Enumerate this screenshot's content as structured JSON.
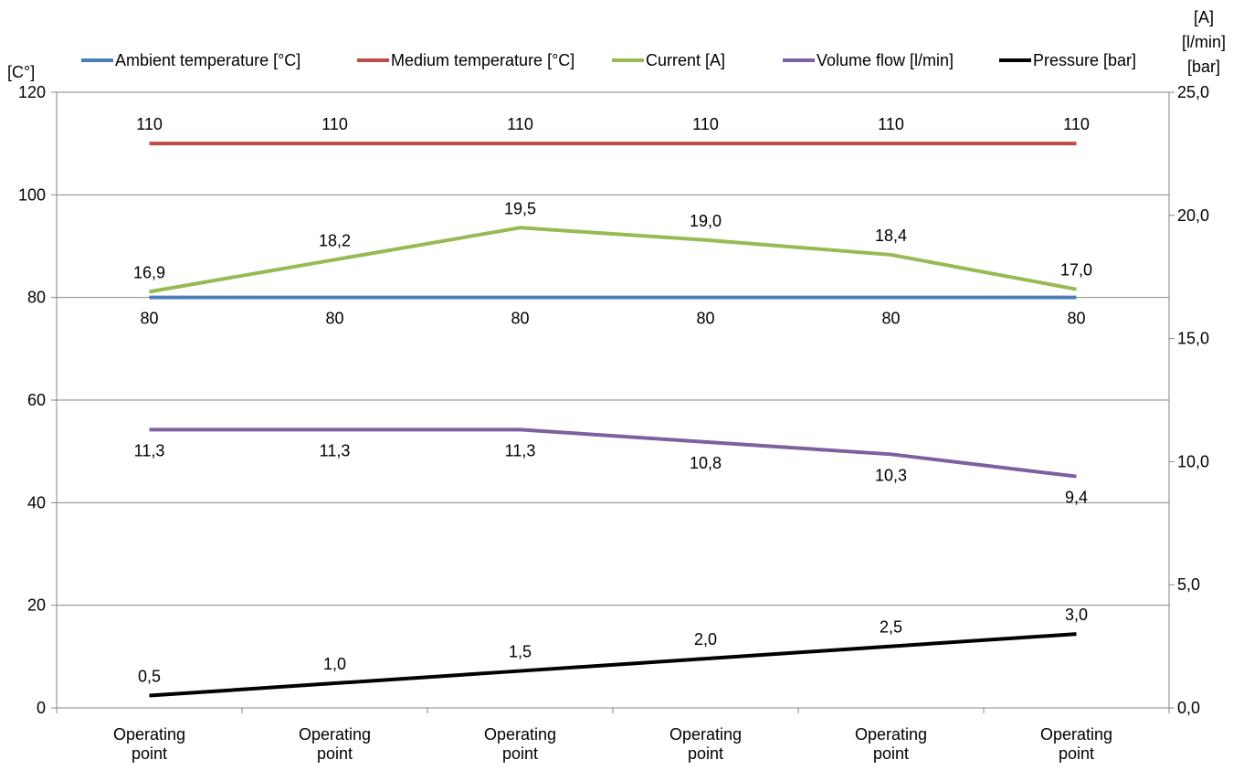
{
  "chart_data": {
    "type": "line",
    "categories": [
      "Operating point",
      "Operating point",
      "Operating point",
      "Operating point",
      "Operating point",
      "Operating point"
    ],
    "y_left": {
      "label": "[C°]",
      "range": [
        0,
        120
      ],
      "ticks": [
        0,
        20,
        40,
        60,
        80,
        100,
        120
      ],
      "tick_labels": [
        "0",
        "20",
        "40",
        "60",
        "80",
        "100",
        "120"
      ]
    },
    "y_right": {
      "label_lines": [
        "[A]",
        "[l/min]",
        "[bar]"
      ],
      "range": [
        0,
        25
      ],
      "ticks": [
        0,
        5,
        10,
        15,
        20,
        25
      ],
      "tick_labels": [
        "0,0",
        "5,0",
        "10,0",
        "15,0",
        "20,0",
        "25,0"
      ]
    },
    "grid": "horizontal",
    "legend_position": "top",
    "series": [
      {
        "name": "Ambient temperature [°C]",
        "axis": "left",
        "color": "#4a7ebb",
        "values": [
          80,
          80,
          80,
          80,
          80,
          80
        ],
        "labels": [
          "80",
          "80",
          "80",
          "80",
          "80",
          "80"
        ],
        "label_pos": "below"
      },
      {
        "name": "Medium temperature [°C]",
        "axis": "left",
        "color": "#be4b48",
        "values": [
          110,
          110,
          110,
          110,
          110,
          110
        ],
        "labels": [
          "110",
          "110",
          "110",
          "110",
          "110",
          "110"
        ],
        "label_pos": "above"
      },
      {
        "name": "Current [A]",
        "axis": "right",
        "color": "#98b954",
        "values": [
          16.9,
          18.2,
          19.5,
          19.0,
          18.4,
          17.0
        ],
        "labels": [
          "16,9",
          "18,2",
          "19,5",
          "19,0",
          "18,4",
          "17,0"
        ],
        "label_pos": "above"
      },
      {
        "name": "Volume flow [l/min]",
        "axis": "right",
        "color": "#7d60a0",
        "values": [
          11.3,
          11.3,
          11.3,
          10.8,
          10.3,
          9.4
        ],
        "labels": [
          "11,3",
          "11,3",
          "11,3",
          "10,8",
          "10,3",
          "9,4"
        ],
        "label_pos": "below"
      },
      {
        "name": "Pressure [bar]",
        "axis": "right",
        "color": "#000000",
        "values": [
          0.5,
          1.0,
          1.5,
          2.0,
          2.5,
          3.0
        ],
        "labels": [
          "0,5",
          "1,0",
          "1,5",
          "2,0",
          "2,5",
          "3,0"
        ],
        "label_pos": "above"
      }
    ]
  }
}
